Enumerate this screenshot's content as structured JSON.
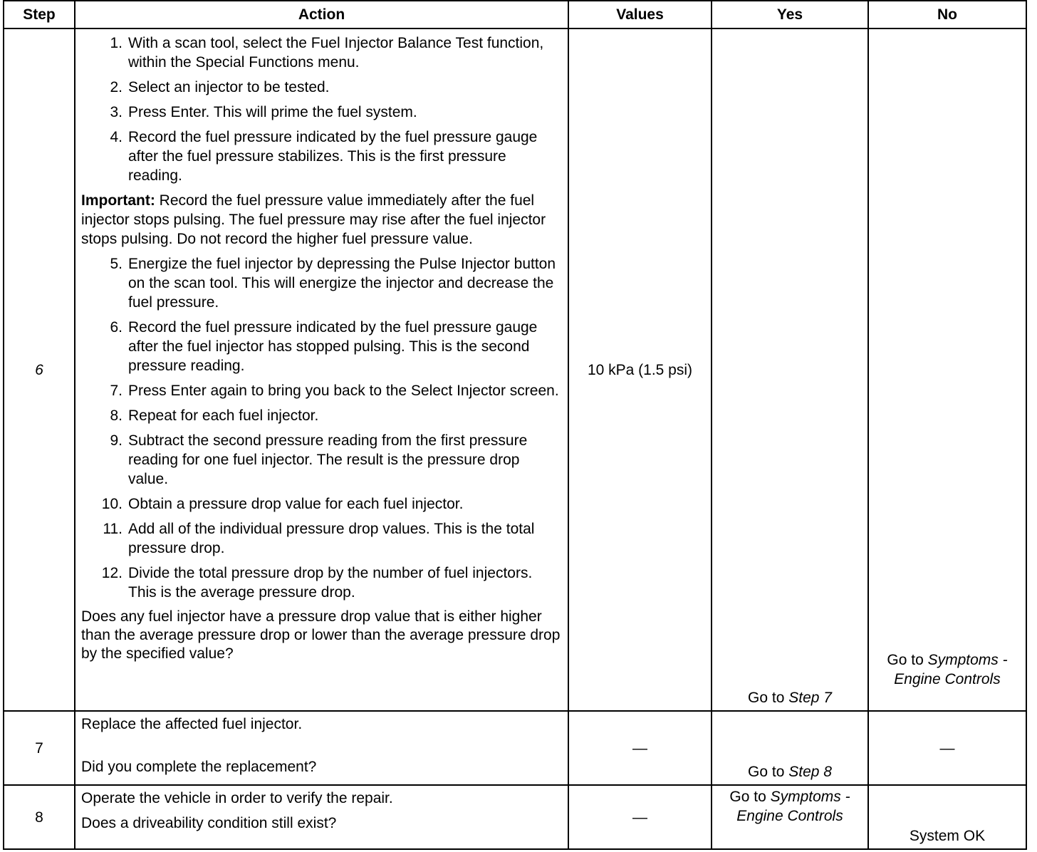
{
  "headers": {
    "step": "Step",
    "action": "Action",
    "values": "Values",
    "yes": "Yes",
    "no": "No"
  },
  "row6": {
    "step": "6",
    "items_a": [
      {
        "n": "1.",
        "t": "With a scan tool, select the Fuel Injector Balance Test function, within the Special Functions menu."
      },
      {
        "n": "2.",
        "t": "Select an injector to be tested."
      },
      {
        "n": "3.",
        "t": "Press Enter. This will prime the fuel system."
      },
      {
        "n": "4.",
        "t": "Record the fuel pressure indicated by the fuel pressure gauge after the fuel pressure stabilizes. This is the first pressure reading."
      }
    ],
    "important_label": "Important:",
    "important_text": " Record the fuel pressure value immediately after the fuel injector stops pulsing. The fuel pressure may rise after the fuel injector stops pulsing. Do not record the higher fuel pressure value.",
    "items_b": [
      {
        "n": "5.",
        "t": "Energize the fuel injector by depressing the Pulse Injector button on the scan tool. This will energize the injector and decrease the fuel pressure."
      },
      {
        "n": "6.",
        "t": "Record the fuel pressure indicated by the fuel pressure gauge after the fuel injector has stopped pulsing. This is the second pressure reading."
      },
      {
        "n": "7.",
        "t": "Press Enter again to bring you back to the Select Injector screen."
      },
      {
        "n": "8.",
        "t": "Repeat for each fuel injector."
      },
      {
        "n": "9.",
        "t": "Subtract the second pressure reading from the first pressure reading for one fuel injector. The result is the pressure drop value."
      },
      {
        "n": "10.",
        "t": "Obtain a pressure drop value for each fuel injector."
      },
      {
        "n": "11.",
        "t": "Add all of the individual pressure drop values. This is the total pressure drop."
      },
      {
        "n": "12.",
        "t": "Divide the total pressure drop by the number of fuel injectors. This is the average pressure drop."
      }
    ],
    "question": "Does any fuel injector have a pressure drop value that is either higher than the average pressure drop or lower than the average pressure drop by the specified value?",
    "value": "10 kPa (1.5 psi)",
    "yes_prefix": "Go to ",
    "yes_link": "Step 7",
    "no_prefix": "Go to ",
    "no_link": "Symptoms - Engine Controls"
  },
  "row7": {
    "step": "7",
    "action": "Replace the affected fuel injector.",
    "question": "Did you complete the replacement?",
    "value": "—",
    "yes_prefix": "Go to ",
    "yes_link": "Step 8",
    "no": "—"
  },
  "row8": {
    "step": "8",
    "action": "Operate the vehicle in order to verify the repair.",
    "question": "Does a driveability condition still exist?",
    "value": "—",
    "yes_prefix": "Go to ",
    "yes_link": "Symptoms - Engine Controls",
    "no": "System OK"
  }
}
